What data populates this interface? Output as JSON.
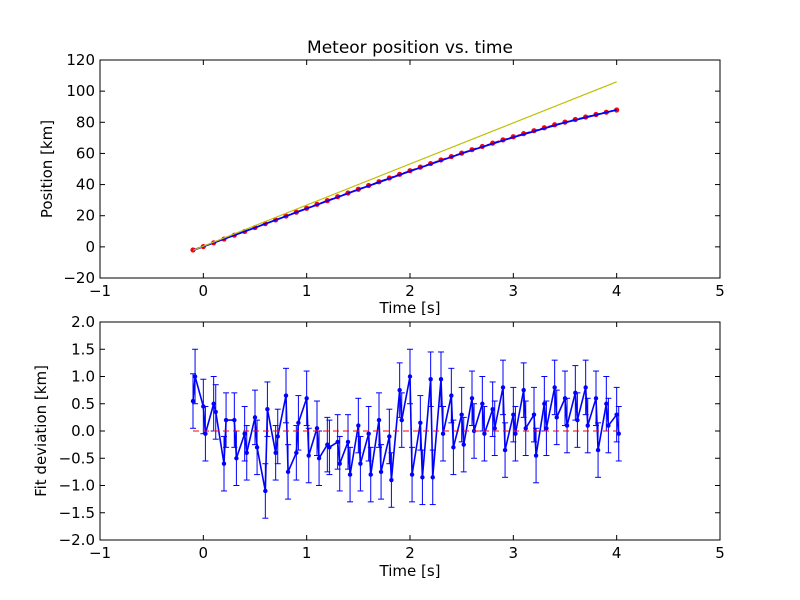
{
  "chart_data": [
    {
      "type": "line",
      "title": "Meteor position vs. time",
      "xlabel": "Time [s]",
      "ylabel": "Position [km]",
      "xlim": [
        -1,
        5
      ],
      "ylim": [
        -20,
        120
      ],
      "xticks": [
        "−1",
        "0",
        "1",
        "2",
        "3",
        "4",
        "5"
      ],
      "yticks": [
        "−20",
        "0",
        "20",
        "40",
        "60",
        "80",
        "100",
        "120"
      ],
      "grid": false,
      "colors": {
        "observed": "#ff0000",
        "fit": "#0000ff",
        "linear": "#bfbf00"
      },
      "series": [
        {
          "style": "dashed-markers",
          "color": "#ff0000",
          "x": [
            -0.1,
            0.0,
            0.1,
            0.2,
            0.3,
            0.4,
            0.5,
            0.6,
            0.7,
            0.8,
            0.9,
            1.0,
            1.1,
            1.2,
            1.3,
            1.4,
            1.5,
            1.6,
            1.7,
            1.8,
            1.9,
            2.0,
            2.1,
            2.2,
            2.3,
            2.4,
            2.5,
            2.6,
            2.7,
            2.8,
            2.9,
            3.0,
            3.1,
            3.2,
            3.3,
            3.4,
            3.5,
            3.6,
            3.7,
            3.8,
            3.9,
            4.0
          ],
          "y": [
            -2,
            0.2,
            2.6,
            5.0,
            7.5,
            9.9,
            12.4,
            14.9,
            17.3,
            19.8,
            22.3,
            24.8,
            27.3,
            29.7,
            32.2,
            34.6,
            37.0,
            39.4,
            41.8,
            44.2,
            46.6,
            48.9,
            51.2,
            53.5,
            55.8,
            58.0,
            60.2,
            62.4,
            64.5,
            66.6,
            68.7,
            70.7,
            72.7,
            74.6,
            76.5,
            78.4,
            80.1,
            81.8,
            83.4,
            85.0,
            86.5,
            87.9
          ]
        },
        {
          "style": "line",
          "color": "#0000ff",
          "x": [
            -0.1,
            0.5,
            1.0,
            1.5,
            2.0,
            2.5,
            3.0,
            3.5,
            4.0
          ],
          "y": [
            -2.2,
            12.3,
            24.6,
            36.8,
            48.6,
            60.0,
            70.4,
            79.9,
            88.0
          ]
        },
        {
          "style": "line",
          "color": "#bfbf00",
          "x": [
            -0.1,
            4.0
          ],
          "y": [
            -2.2,
            106
          ]
        }
      ]
    },
    {
      "type": "line",
      "title": "",
      "xlabel": "Time [s]",
      "ylabel": "Fit deviation [km]",
      "xlim": [
        -1,
        5
      ],
      "ylim": [
        -2.0,
        2.0
      ],
      "xticks": [
        "−1",
        "0",
        "1",
        "2",
        "3",
        "4",
        "5"
      ],
      "yticks": [
        "−2.0",
        "−1.5",
        "−1.0",
        "−0.5",
        "0.0",
        "0.5",
        "1.0",
        "1.5",
        "2.0"
      ],
      "grid": false,
      "colors": {
        "deviation": "#0000ff",
        "zero": "#ff0000"
      },
      "error": 0.5,
      "series": [
        {
          "style": "errorbar-line",
          "color": "#0000ff",
          "x": [
            -0.1,
            -0.08,
            0.0,
            0.02,
            0.1,
            0.12,
            0.2,
            0.22,
            0.3,
            0.32,
            0.4,
            0.42,
            0.5,
            0.52,
            0.6,
            0.62,
            0.7,
            0.72,
            0.8,
            0.82,
            0.9,
            0.92,
            1.0,
            1.02,
            1.1,
            1.12,
            1.2,
            1.22,
            1.3,
            1.32,
            1.4,
            1.42,
            1.5,
            1.52,
            1.6,
            1.62,
            1.7,
            1.72,
            1.8,
            1.82,
            1.9,
            1.92,
            2.0,
            2.02,
            2.1,
            2.12,
            2.2,
            2.22,
            2.3,
            2.32,
            2.4,
            2.42,
            2.5,
            2.52,
            2.6,
            2.62,
            2.7,
            2.72,
            2.8,
            2.82,
            2.9,
            2.92,
            3.0,
            3.02,
            3.1,
            3.12,
            3.2,
            3.22,
            3.3,
            3.32,
            3.4,
            3.42,
            3.5,
            3.52,
            3.6,
            3.62,
            3.7,
            3.72,
            3.8,
            3.82,
            3.9,
            3.92,
            4.0,
            4.02
          ],
          "y": [
            0.55,
            1.0,
            0.45,
            -0.05,
            0.5,
            0.35,
            -0.6,
            0.2,
            0.2,
            -0.5,
            -0.05,
            -0.4,
            0.25,
            -0.3,
            -1.1,
            0.4,
            -0.4,
            -0.1,
            0.65,
            -0.75,
            -0.4,
            0.15,
            0.6,
            -0.45,
            0.05,
            -0.5,
            -0.25,
            -0.3,
            -0.2,
            -0.6,
            -0.2,
            -0.8,
            0.1,
            -0.6,
            -0.05,
            -0.8,
            0.2,
            -0.75,
            -0.1,
            -0.9,
            0.75,
            0.2,
            1.0,
            -0.8,
            0.15,
            -0.85,
            0.95,
            -0.85,
            0.95,
            -0.05,
            0.65,
            -0.3,
            0.3,
            -0.25,
            0.6,
            0.0,
            0.5,
            -0.05,
            0.4,
            0.05,
            0.8,
            -0.35,
            0.3,
            -0.05,
            0.75,
            0.05,
            0.3,
            -0.45,
            0.5,
            0.05,
            0.8,
            0.25,
            0.6,
            0.1,
            0.7,
            0.2,
            0.8,
            0.1,
            0.6,
            -0.35,
            0.5,
            0.1,
            0.3,
            -0.05
          ]
        },
        {
          "style": "dashed",
          "color": "#ff0000",
          "x": [
            -0.1,
            4.0
          ],
          "y": [
            0.0,
            0.0
          ]
        }
      ]
    }
  ]
}
